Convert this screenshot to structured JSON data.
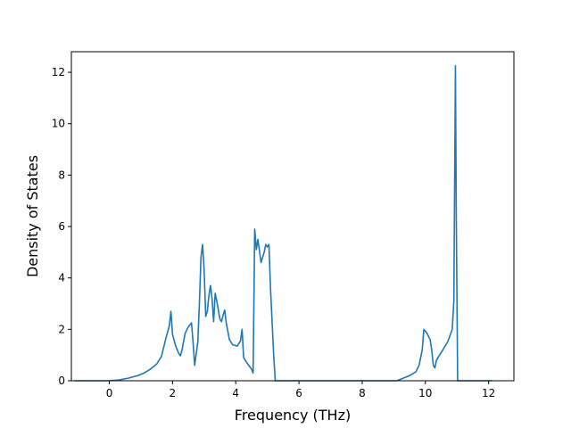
{
  "chart_data": {
    "type": "line",
    "title": "",
    "xlabel": "Frequency (THz)",
    "ylabel": "Density of States",
    "xlim": [
      -1.2,
      12.8
    ],
    "ylim": [
      0,
      12.8
    ],
    "xticks": [
      0,
      2,
      4,
      6,
      8,
      10,
      12
    ],
    "yticks": [
      0,
      2,
      4,
      6,
      8,
      10,
      12
    ],
    "xtick_labels": [
      "0",
      "2",
      "4",
      "6",
      "8",
      "10",
      "12"
    ],
    "ytick_labels": [
      "0",
      "2",
      "4",
      "6",
      "8",
      "10",
      "12"
    ],
    "grid": false,
    "series": [
      {
        "color": "#1f77b4",
        "points": [
          [
            -1.1,
            0
          ],
          [
            0.0,
            0
          ],
          [
            0.3,
            0.03
          ],
          [
            0.6,
            0.1
          ],
          [
            0.9,
            0.2
          ],
          [
            1.1,
            0.3
          ],
          [
            1.3,
            0.45
          ],
          [
            1.5,
            0.65
          ],
          [
            1.65,
            0.95
          ],
          [
            1.8,
            1.7
          ],
          [
            1.9,
            2.15
          ],
          [
            1.95,
            2.7
          ],
          [
            2.0,
            1.8
          ],
          [
            2.1,
            1.35
          ],
          [
            2.2,
            1.05
          ],
          [
            2.25,
            0.97
          ],
          [
            2.3,
            1.2
          ],
          [
            2.4,
            1.85
          ],
          [
            2.5,
            2.1
          ],
          [
            2.6,
            2.25
          ],
          [
            2.65,
            1.5
          ],
          [
            2.7,
            0.6
          ],
          [
            2.8,
            1.5
          ],
          [
            2.85,
            3.0
          ],
          [
            2.9,
            4.8
          ],
          [
            2.95,
            5.3
          ],
          [
            3.0,
            4.3
          ],
          [
            3.05,
            2.5
          ],
          [
            3.1,
            2.7
          ],
          [
            3.15,
            3.3
          ],
          [
            3.2,
            3.7
          ],
          [
            3.25,
            3.2
          ],
          [
            3.3,
            2.3
          ],
          [
            3.35,
            3.4
          ],
          [
            3.4,
            3.1
          ],
          [
            3.45,
            2.75
          ],
          [
            3.5,
            2.4
          ],
          [
            3.55,
            2.3
          ],
          [
            3.6,
            2.55
          ],
          [
            3.65,
            2.75
          ],
          [
            3.7,
            2.25
          ],
          [
            3.8,
            1.6
          ],
          [
            3.9,
            1.4
          ],
          [
            4.05,
            1.35
          ],
          [
            4.15,
            1.55
          ],
          [
            4.2,
            2.0
          ],
          [
            4.25,
            0.9
          ],
          [
            4.35,
            0.7
          ],
          [
            4.5,
            0.45
          ],
          [
            4.55,
            0.3
          ],
          [
            4.6,
            5.9
          ],
          [
            4.65,
            5.1
          ],
          [
            4.7,
            5.5
          ],
          [
            4.8,
            4.6
          ],
          [
            4.9,
            5.0
          ],
          [
            4.95,
            5.3
          ],
          [
            5.0,
            5.2
          ],
          [
            5.05,
            5.3
          ],
          [
            5.1,
            3.6
          ],
          [
            5.2,
            1.0
          ],
          [
            5.25,
            0
          ],
          [
            9.1,
            0
          ],
          [
            9.3,
            0.1
          ],
          [
            9.5,
            0.2
          ],
          [
            9.7,
            0.35
          ],
          [
            9.8,
            0.6
          ],
          [
            9.9,
            1.2
          ],
          [
            9.95,
            2.0
          ],
          [
            10.05,
            1.85
          ],
          [
            10.15,
            1.6
          ],
          [
            10.2,
            1.2
          ],
          [
            10.25,
            0.6
          ],
          [
            10.3,
            0.5
          ],
          [
            10.35,
            0.8
          ],
          [
            10.5,
            1.1
          ],
          [
            10.7,
            1.5
          ],
          [
            10.85,
            2.0
          ],
          [
            10.9,
            3.1
          ],
          [
            10.95,
            12.25
          ],
          [
            10.98,
            6.0
          ],
          [
            11.02,
            0
          ],
          [
            12.1,
            0
          ]
        ]
      }
    ]
  }
}
